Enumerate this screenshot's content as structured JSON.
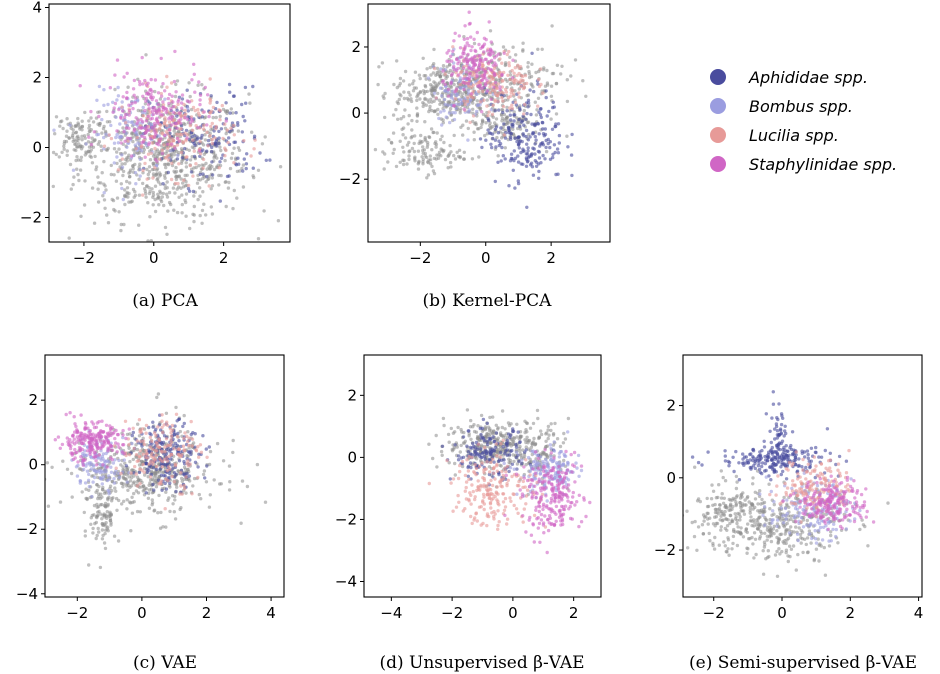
{
  "legend": {
    "entries": [
      {
        "label": "Aphididae spp.",
        "color": "#4a4c9e"
      },
      {
        "label": "Bombus spp.",
        "color": "#9b9de0"
      },
      {
        "label": "Lucilia spp.",
        "color": "#e79a98"
      },
      {
        "label": "Staphylinidae spp.",
        "color": "#d066c5"
      }
    ],
    "unlabeled_color": "#8c8c8c"
  },
  "chart_data": [
    {
      "type": "scatter",
      "caption": "(a) PCA",
      "xlim": [
        -3.0,
        3.9
      ],
      "ylim": [
        -2.7,
        4.1
      ],
      "xticks": [
        -2,
        0,
        2
      ],
      "yticks": [
        -2,
        0,
        2,
        4
      ],
      "clusters": [
        {
          "class": "unlabeled",
          "cx": 0.3,
          "cy": -0.3,
          "sx": 1.2,
          "sy": 0.9,
          "n": 700
        },
        {
          "class": "unlabeled",
          "cx": -2.2,
          "cy": 0.3,
          "sx": 0.35,
          "sy": 0.3,
          "n": 100
        },
        {
          "class": "Aphididae spp.",
          "cx": 1.5,
          "cy": 0.3,
          "sx": 0.8,
          "sy": 0.7,
          "n": 160
        },
        {
          "class": "Bombus spp.",
          "cx": -0.6,
          "cy": 0.4,
          "sx": 0.6,
          "sy": 0.6,
          "n": 120
        },
        {
          "class": "Lucilia spp.",
          "cx": 0.7,
          "cy": 0.4,
          "sx": 0.8,
          "sy": 0.6,
          "n": 200
        },
        {
          "class": "Staphylinidae spp.",
          "cx": 0.0,
          "cy": 1.0,
          "sx": 0.7,
          "sy": 0.6,
          "n": 200
        }
      ]
    },
    {
      "type": "scatter",
      "caption": "(b) Kernel-PCA",
      "xlim": [
        -3.6,
        3.8
      ],
      "ylim": [
        -3.9,
        3.3
      ],
      "xticks": [
        -2,
        0,
        2
      ],
      "yticks": [
        -2,
        0,
        2
      ],
      "clusters": [
        {
          "class": "unlabeled",
          "cx": -1.2,
          "cy": 0.6,
          "sx": 0.8,
          "sy": 0.5,
          "n": 350
        },
        {
          "class": "unlabeled",
          "cx": 0.6,
          "cy": 1.0,
          "sx": 0.9,
          "sy": 0.6,
          "n": 200
        },
        {
          "class": "unlabeled",
          "cx": -1.9,
          "cy": -1.2,
          "sx": 0.6,
          "sy": 0.3,
          "n": 120
        },
        {
          "class": "unlabeled",
          "cx": 0.5,
          "cy": -0.4,
          "sx": 0.6,
          "sy": 0.3,
          "n": 100
        },
        {
          "class": "Aphididae spp.",
          "cx": 1.2,
          "cy": -0.7,
          "sx": 0.6,
          "sy": 0.7,
          "n": 220
        },
        {
          "class": "Bombus spp.",
          "cx": -0.8,
          "cy": 0.7,
          "sx": 0.4,
          "sy": 0.5,
          "n": 100
        },
        {
          "class": "Lucilia spp.",
          "cx": 0.2,
          "cy": 0.9,
          "sx": 0.6,
          "sy": 0.5,
          "n": 180
        },
        {
          "class": "Staphylinidae spp.",
          "cx": -0.3,
          "cy": 1.4,
          "sx": 0.5,
          "sy": 0.5,
          "n": 180
        }
      ]
    },
    {
      "type": "scatter",
      "caption": "(c) VAE",
      "xlim": [
        -3.0,
        4.4
      ],
      "ylim": [
        -4.1,
        3.4
      ],
      "xticks": [
        -2,
        0,
        2,
        4
      ],
      "yticks": [
        -4,
        -2,
        0,
        2
      ],
      "clusters": [
        {
          "class": "unlabeled",
          "cx": 0.0,
          "cy": -0.3,
          "sx": 1.2,
          "sy": 0.5,
          "n": 350
        },
        {
          "class": "unlabeled",
          "cx": -1.2,
          "cy": -1.5,
          "sx": 0.2,
          "sy": 0.6,
          "n": 100
        },
        {
          "class": "unlabeled",
          "cx": 0.4,
          "cy": 0.0,
          "sx": 0.6,
          "sy": 0.8,
          "n": 150
        },
        {
          "class": "Aphididae spp.",
          "cx": 0.8,
          "cy": 0.3,
          "sx": 0.5,
          "sy": 0.5,
          "n": 200
        },
        {
          "class": "Bombus spp.",
          "cx": -1.3,
          "cy": 0.1,
          "sx": 0.4,
          "sy": 0.4,
          "n": 120
        },
        {
          "class": "Lucilia spp.",
          "cx": 0.6,
          "cy": 0.4,
          "sx": 0.6,
          "sy": 0.6,
          "n": 160
        },
        {
          "class": "Staphylinidae spp.",
          "cx": -1.6,
          "cy": 0.7,
          "sx": 0.5,
          "sy": 0.3,
          "n": 220
        }
      ]
    },
    {
      "type": "scatter",
      "caption": "(d) Unsupervised β-VAE",
      "xlim": [
        -4.9,
        2.9
      ],
      "ylim": [
        -4.5,
        3.3
      ],
      "xticks": [
        -4,
        -2,
        0,
        2
      ],
      "yticks": [
        -4,
        -2,
        0,
        2
      ],
      "clusters": [
        {
          "class": "unlabeled",
          "cx": -0.6,
          "cy": 0.4,
          "sx": 0.8,
          "sy": 0.4,
          "n": 300
        },
        {
          "class": "unlabeled",
          "cx": 0.9,
          "cy": 0.2,
          "sx": 0.5,
          "sy": 0.5,
          "n": 100
        },
        {
          "class": "Aphididae spp.",
          "cx": -0.8,
          "cy": 0.1,
          "sx": 0.6,
          "sy": 0.4,
          "n": 150
        },
        {
          "class": "Bombus spp.",
          "cx": 1.2,
          "cy": -0.5,
          "sx": 0.5,
          "sy": 0.4,
          "n": 150
        },
        {
          "class": "Lucilia spp.",
          "cx": -0.6,
          "cy": -1.0,
          "sx": 0.7,
          "sy": 0.6,
          "n": 200
        },
        {
          "class": "Staphylinidae spp.",
          "cx": 1.3,
          "cy": -1.3,
          "sx": 0.5,
          "sy": 0.6,
          "n": 220
        }
      ]
    },
    {
      "type": "scatter",
      "caption": "(e) Semi-supervised β-VAE",
      "xlim": [
        -2.9,
        4.1
      ],
      "ylim": [
        -3.3,
        3.4
      ],
      "xticks": [
        -2,
        0,
        2,
        4
      ],
      "yticks": [
        -2,
        0,
        2
      ],
      "clusters": [
        {
          "class": "unlabeled",
          "cx": -0.2,
          "cy": -1.3,
          "sx": 1.0,
          "sy": 0.5,
          "n": 350
        },
        {
          "class": "unlabeled",
          "cx": -1.6,
          "cy": -0.9,
          "sx": 0.6,
          "sy": 0.4,
          "n": 120
        },
        {
          "class": "Aphididae spp.",
          "cx": -0.2,
          "cy": 0.5,
          "sx": 0.8,
          "sy": 0.2,
          "n": 200
        },
        {
          "class": "Aphididae spp.",
          "cx": -0.1,
          "cy": 1.1,
          "sx": 0.15,
          "sy": 0.5,
          "n": 60
        },
        {
          "class": "Bombus spp.",
          "cx": 0.8,
          "cy": -0.9,
          "sx": 0.6,
          "sy": 0.4,
          "n": 150
        },
        {
          "class": "Lucilia spp.",
          "cx": 1.0,
          "cy": -0.2,
          "sx": 0.5,
          "sy": 0.4,
          "n": 150
        },
        {
          "class": "Staphylinidae spp.",
          "cx": 1.5,
          "cy": -0.7,
          "sx": 0.5,
          "sy": 0.3,
          "n": 200
        }
      ]
    }
  ]
}
